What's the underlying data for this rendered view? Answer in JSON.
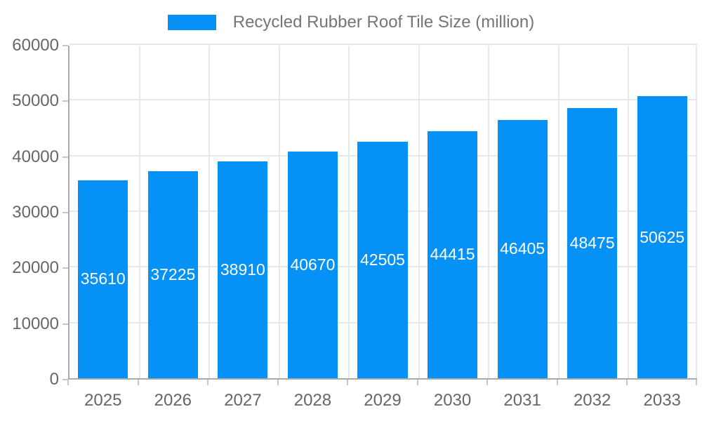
{
  "chart_data": {
    "type": "bar",
    "title": "",
    "legend_label": "Recycled Rubber Roof Tile Size (million)",
    "categories": [
      "2025",
      "2026",
      "2027",
      "2028",
      "2029",
      "2030",
      "2031",
      "2032",
      "2033"
    ],
    "values": [
      35610,
      37225,
      38910,
      40670,
      42505,
      44415,
      46405,
      48475,
      50625
    ],
    "xlabel": "",
    "ylabel": "",
    "ylim": [
      0,
      60000
    ],
    "yticks": [
      0,
      10000,
      20000,
      30000,
      40000,
      50000,
      60000
    ],
    "grid": true,
    "legend_position": "top",
    "bar_label_position": "inside-center"
  },
  "colors": {
    "background": "#FFFFFF",
    "bar": "#0591F5",
    "bar_label": "#FFFFFF",
    "axis_line": "#AAAAAA",
    "grid_line": "#E8E8E8",
    "tick_mark": "#C6C6C6",
    "tick_label": "#666666",
    "legend_text": "#757575"
  }
}
